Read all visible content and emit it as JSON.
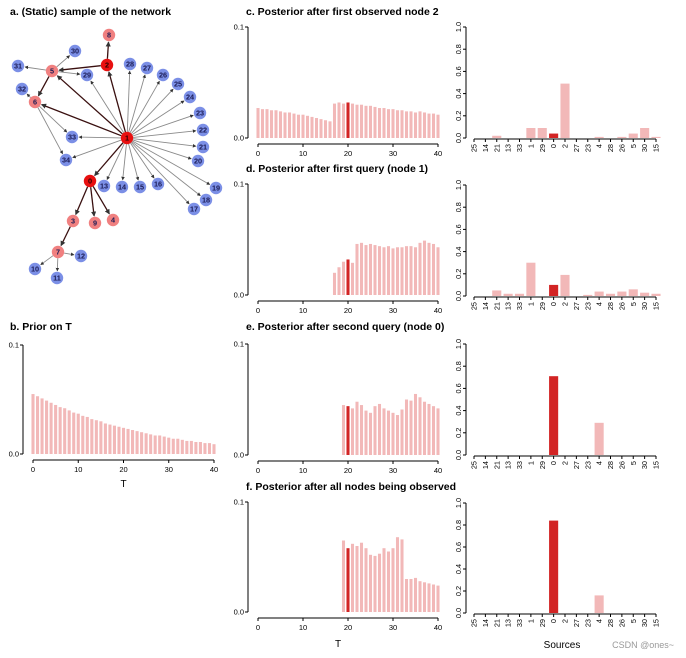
{
  "titles": {
    "a": "a. (Static) sample of the network",
    "b": "b. Prior on T",
    "c": "c. Posterior after first observed node 2",
    "d": "d. Posterior after first query (node 1)",
    "e": "e. Posterior after second query (node 0)",
    "f": "f. Posterior after all nodes being observed"
  },
  "watermark": "CSDN @ones~",
  "colors": {
    "pink": "#f2b8b8",
    "red": "#d22424",
    "node_blue": "#7b8fe6",
    "node_pink": "#f08080",
    "node_red": "#e81010"
  },
  "network": {
    "nodes": [
      {
        "id": "1",
        "color": "red"
      },
      {
        "id": "2",
        "color": "red"
      },
      {
        "id": "0",
        "color": "red"
      },
      {
        "id": "8",
        "color": "pink"
      },
      {
        "id": "5",
        "color": "pink"
      },
      {
        "id": "6",
        "color": "pink"
      },
      {
        "id": "3",
        "color": "pink"
      },
      {
        "id": "9",
        "color": "pink"
      },
      {
        "id": "4",
        "color": "pink"
      },
      {
        "id": "7",
        "color": "pink"
      },
      {
        "id": "30",
        "color": "blue"
      },
      {
        "id": "31",
        "color": "blue"
      },
      {
        "id": "29",
        "color": "blue"
      },
      {
        "id": "32",
        "color": "blue"
      },
      {
        "id": "28",
        "color": "blue"
      },
      {
        "id": "27",
        "color": "blue"
      },
      {
        "id": "26",
        "color": "blue"
      },
      {
        "id": "25",
        "color": "blue"
      },
      {
        "id": "24",
        "color": "blue"
      },
      {
        "id": "23",
        "color": "blue"
      },
      {
        "id": "22",
        "color": "blue"
      },
      {
        "id": "21",
        "color": "blue"
      },
      {
        "id": "20",
        "color": "blue"
      },
      {
        "id": "19",
        "color": "blue"
      },
      {
        "id": "18",
        "color": "blue"
      },
      {
        "id": "17",
        "color": "blue"
      },
      {
        "id": "16",
        "color": "blue"
      },
      {
        "id": "15",
        "color": "blue"
      },
      {
        "id": "14",
        "color": "blue"
      },
      {
        "id": "13",
        "color": "blue"
      },
      {
        "id": "33",
        "color": "blue"
      },
      {
        "id": "34",
        "color": "blue"
      },
      {
        "id": "12",
        "color": "blue"
      },
      {
        "id": "10",
        "color": "blue"
      },
      {
        "id": "11",
        "color": "blue"
      }
    ],
    "edges": [
      [
        "1",
        "2"
      ],
      [
        "1",
        "0"
      ],
      [
        "1",
        "6"
      ],
      [
        "1",
        "5"
      ],
      [
        "1",
        "29"
      ],
      [
        "1",
        "28"
      ],
      [
        "1",
        "27"
      ],
      [
        "1",
        "26"
      ],
      [
        "1",
        "25"
      ],
      [
        "1",
        "24"
      ],
      [
        "1",
        "23"
      ],
      [
        "1",
        "22"
      ],
      [
        "1",
        "21"
      ],
      [
        "1",
        "20"
      ],
      [
        "1",
        "19"
      ],
      [
        "1",
        "18"
      ],
      [
        "1",
        "17"
      ],
      [
        "1",
        "16"
      ],
      [
        "1",
        "15"
      ],
      [
        "1",
        "14"
      ],
      [
        "1",
        "13"
      ],
      [
        "1",
        "33"
      ],
      [
        "1",
        "34"
      ],
      [
        "2",
        "8"
      ],
      [
        "2",
        "5"
      ],
      [
        "5",
        "30"
      ],
      [
        "5",
        "31"
      ],
      [
        "5",
        "29"
      ],
      [
        "5",
        "6"
      ],
      [
        "6",
        "32"
      ],
      [
        "6",
        "34"
      ],
      [
        "6",
        "33"
      ],
      [
        "0",
        "3"
      ],
      [
        "0",
        "9"
      ],
      [
        "0",
        "4"
      ],
      [
        "3",
        "7"
      ],
      [
        "7",
        "12"
      ],
      [
        "7",
        "10"
      ],
      [
        "7",
        "11"
      ]
    ]
  },
  "chart_data": [
    {
      "id": "b",
      "type": "bar",
      "title": "b. Prior on T",
      "xlabel": "T",
      "ylabel": "",
      "xlim": [
        0,
        40
      ],
      "ylim": [
        0,
        0.1
      ],
      "x_ticks": [
        0,
        10,
        20,
        30,
        40
      ],
      "y_ticks": [
        "0.0",
        "0.1"
      ],
      "x": [
        0,
        1,
        2,
        3,
        4,
        5,
        6,
        7,
        8,
        9,
        10,
        11,
        12,
        13,
        14,
        15,
        16,
        17,
        18,
        19,
        20,
        21,
        22,
        23,
        24,
        25,
        26,
        27,
        28,
        29,
        30,
        31,
        32,
        33,
        34,
        35,
        36,
        37,
        38,
        39,
        40
      ],
      "values": [
        0.055,
        0.053,
        0.051,
        0.049,
        0.047,
        0.045,
        0.043,
        0.042,
        0.04,
        0.038,
        0.037,
        0.035,
        0.034,
        0.032,
        0.031,
        0.03,
        0.028,
        0.027,
        0.026,
        0.025,
        0.024,
        0.023,
        0.022,
        0.021,
        0.02,
        0.019,
        0.018,
        0.017,
        0.017,
        0.016,
        0.015,
        0.014,
        0.014,
        0.013,
        0.012,
        0.012,
        0.011,
        0.011,
        0.01,
        0.01,
        0.009
      ],
      "highlight": null
    },
    {
      "id": "c",
      "type": "bar",
      "title": "c. Posterior after first observed node 2",
      "xlabel": "",
      "ylabel": "",
      "xlim": [
        0,
        40
      ],
      "ylim": [
        0,
        0.1
      ],
      "x_ticks": [
        0,
        10,
        20,
        30,
        40
      ],
      "y_ticks": [
        "0.0",
        "0.1"
      ],
      "x": [
        0,
        1,
        2,
        3,
        4,
        5,
        6,
        7,
        8,
        9,
        10,
        11,
        12,
        13,
        14,
        15,
        16,
        17,
        18,
        19,
        20,
        21,
        22,
        23,
        24,
        25,
        26,
        27,
        28,
        29,
        30,
        31,
        32,
        33,
        34,
        35,
        36,
        37,
        38,
        39,
        40
      ],
      "values": [
        0.027,
        0.026,
        0.026,
        0.025,
        0.025,
        0.024,
        0.023,
        0.023,
        0.022,
        0.021,
        0.021,
        0.02,
        0.019,
        0.018,
        0.017,
        0.016,
        0.015,
        0.031,
        0.032,
        0.031,
        0.032,
        0.031,
        0.03,
        0.03,
        0.029,
        0.029,
        0.028,
        0.027,
        0.027,
        0.026,
        0.026,
        0.025,
        0.025,
        0.024,
        0.024,
        0.023,
        0.024,
        0.023,
        0.022,
        0.022,
        0.021
      ],
      "highlight": 20
    },
    {
      "id": "d",
      "type": "bar",
      "title": "d. Posterior after first query (node 1)",
      "xlabel": "",
      "ylabel": "",
      "xlim": [
        0,
        40
      ],
      "ylim": [
        0,
        0.1
      ],
      "x_ticks": [
        0,
        10,
        20,
        30,
        40
      ],
      "y_ticks": [
        "0.0",
        "0.1"
      ],
      "x": [
        0,
        1,
        2,
        3,
        4,
        5,
        6,
        7,
        8,
        9,
        10,
        11,
        12,
        13,
        14,
        15,
        16,
        17,
        18,
        19,
        20,
        21,
        22,
        23,
        24,
        25,
        26,
        27,
        28,
        29,
        30,
        31,
        32,
        33,
        34,
        35,
        36,
        37,
        38,
        39,
        40
      ],
      "values": [
        0,
        0,
        0,
        0,
        0,
        0,
        0,
        0,
        0,
        0,
        0,
        0,
        0,
        0,
        0,
        0,
        0,
        0.02,
        0.025,
        0.03,
        0.032,
        0.029,
        0.046,
        0.047,
        0.045,
        0.046,
        0.045,
        0.044,
        0.043,
        0.044,
        0.042,
        0.043,
        0.043,
        0.044,
        0.044,
        0.043,
        0.047,
        0.049,
        0.047,
        0.046,
        0.043
      ],
      "highlight": 20
    },
    {
      "id": "e",
      "type": "bar",
      "title": "e. Posterior after second query (node 0)",
      "xlabel": "",
      "ylabel": "",
      "xlim": [
        0,
        40
      ],
      "ylim": [
        0,
        0.1
      ],
      "x_ticks": [
        0,
        10,
        20,
        30,
        40
      ],
      "y_ticks": [
        "0.0",
        "0.1"
      ],
      "x": [
        0,
        1,
        2,
        3,
        4,
        5,
        6,
        7,
        8,
        9,
        10,
        11,
        12,
        13,
        14,
        15,
        16,
        17,
        18,
        19,
        20,
        21,
        22,
        23,
        24,
        25,
        26,
        27,
        28,
        29,
        30,
        31,
        32,
        33,
        34,
        35,
        36,
        37,
        38,
        39,
        40
      ],
      "values": [
        0,
        0,
        0,
        0,
        0,
        0,
        0,
        0,
        0,
        0,
        0,
        0,
        0,
        0,
        0,
        0,
        0,
        0,
        0,
        0.045,
        0.044,
        0.042,
        0.048,
        0.045,
        0.04,
        0.038,
        0.044,
        0.046,
        0.042,
        0.04,
        0.038,
        0.036,
        0.041,
        0.05,
        0.049,
        0.055,
        0.052,
        0.048,
        0.046,
        0.044,
        0.042
      ],
      "highlight": 20
    },
    {
      "id": "f",
      "type": "bar",
      "title": "f. Posterior after all nodes being observed",
      "xlabel": "T",
      "ylabel": "",
      "xlim": [
        0,
        40
      ],
      "ylim": [
        0,
        0.1
      ],
      "x_ticks": [
        0,
        10,
        20,
        30,
        40
      ],
      "y_ticks": [
        "0.0",
        "0.1"
      ],
      "x": [
        0,
        1,
        2,
        3,
        4,
        5,
        6,
        7,
        8,
        9,
        10,
        11,
        12,
        13,
        14,
        15,
        16,
        17,
        18,
        19,
        20,
        21,
        22,
        23,
        24,
        25,
        26,
        27,
        28,
        29,
        30,
        31,
        32,
        33,
        34,
        35,
        36,
        37,
        38,
        39,
        40
      ],
      "values": [
        0,
        0,
        0,
        0,
        0,
        0,
        0,
        0,
        0,
        0,
        0,
        0,
        0,
        0,
        0,
        0,
        0,
        0,
        0,
        0.065,
        0.058,
        0.062,
        0.06,
        0.063,
        0.058,
        0.052,
        0.051,
        0.053,
        0.058,
        0.055,
        0.058,
        0.068,
        0.066,
        0.03,
        0.03,
        0.031,
        0.028,
        0.027,
        0.026,
        0.025,
        0.024
      ],
      "highlight": 20
    },
    {
      "id": "c_src",
      "type": "bar",
      "title": "",
      "xlabel": "",
      "ylabel": "",
      "ylim": [
        0,
        1
      ],
      "y_ticks": [
        "0.0",
        "0.2",
        "0.4",
        "0.6",
        "0.8",
        "1.0"
      ],
      "categories": [
        "25",
        "14",
        "21",
        "13",
        "33",
        "1",
        "29",
        "0",
        "2",
        "27",
        "23",
        "4",
        "28",
        "26",
        "5",
        "30",
        "15"
      ],
      "values": [
        0,
        0,
        0.02,
        0,
        0,
        0.09,
        0.09,
        0.04,
        0.49,
        0,
        0,
        0.01,
        0,
        0.01,
        0.04,
        0.09,
        0.01
      ],
      "highlight": "0"
    },
    {
      "id": "d_src",
      "type": "bar",
      "title": "",
      "xlabel": "",
      "ylabel": "",
      "ylim": [
        0,
        1
      ],
      "y_ticks": [
        "0.0",
        "0.2",
        "0.4",
        "0.6",
        "0.8",
        "1.0"
      ],
      "categories": [
        "25",
        "14",
        "21",
        "13",
        "33",
        "1",
        "29",
        "0",
        "2",
        "27",
        "23",
        "4",
        "28",
        "26",
        "5",
        "30",
        "15"
      ],
      "values": [
        0,
        0,
        0.05,
        0.02,
        0.02,
        0.3,
        0,
        0.1,
        0.19,
        0,
        0.01,
        0.04,
        0.02,
        0.04,
        0.06,
        0.03,
        0.02
      ],
      "highlight": "0"
    },
    {
      "id": "e_src",
      "type": "bar",
      "title": "",
      "xlabel": "",
      "ylabel": "",
      "ylim": [
        0,
        1
      ],
      "y_ticks": [
        "0.0",
        "0.2",
        "0.4",
        "0.6",
        "0.8",
        "1.0"
      ],
      "categories": [
        "25",
        "14",
        "21",
        "13",
        "33",
        "1",
        "29",
        "0",
        "2",
        "27",
        "23",
        "4",
        "28",
        "26",
        "5",
        "30",
        "15"
      ],
      "values": [
        0,
        0,
        0,
        0,
        0,
        0,
        0,
        0.71,
        0,
        0,
        0,
        0.29,
        0,
        0,
        0,
        0,
        0
      ],
      "highlight": "0"
    },
    {
      "id": "f_src",
      "type": "bar",
      "title": "",
      "xlabel": "Sources",
      "ylabel": "",
      "ylim": [
        0,
        1
      ],
      "y_ticks": [
        "0.0",
        "0.2",
        "0.4",
        "0.6",
        "0.8",
        "1.0"
      ],
      "categories": [
        "25",
        "14",
        "21",
        "13",
        "33",
        "1",
        "29",
        "0",
        "2",
        "27",
        "23",
        "4",
        "28",
        "26",
        "5",
        "30",
        "15"
      ],
      "values": [
        0,
        0,
        0,
        0,
        0,
        0,
        0,
        0.84,
        0,
        0,
        0,
        0.16,
        0,
        0,
        0,
        0,
        0
      ],
      "highlight": "0"
    }
  ]
}
